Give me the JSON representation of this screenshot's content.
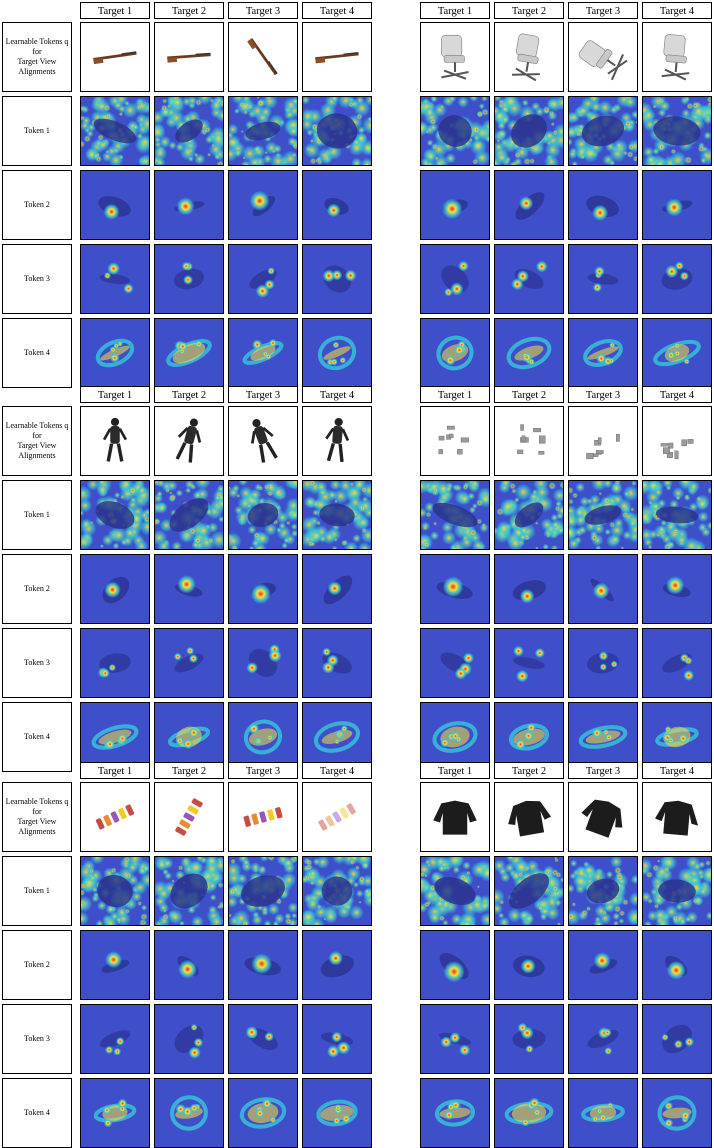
{
  "figure": {
    "panels": [
      {
        "name": "rifle",
        "columns": [
          "Target 1",
          "Target 2",
          "Target 3",
          "Target 4"
        ]
      },
      {
        "name": "chair",
        "columns": [
          "Target 1",
          "Target 2",
          "Target 3",
          "Target 4"
        ]
      },
      {
        "name": "human",
        "columns": [
          "Target 1",
          "Target 2",
          "Target 3",
          "Target 4"
        ]
      },
      {
        "name": "scene",
        "columns": [
          "Target 1",
          "Target 2",
          "Target 3",
          "Target 4"
        ]
      },
      {
        "name": "text-sculpture",
        "columns": [
          "Target 1",
          "Target 2",
          "Target 3",
          "Target 4"
        ]
      },
      {
        "name": "jacket",
        "columns": [
          "Target 1",
          "Target 2",
          "Target 3",
          "Target 4"
        ]
      }
    ],
    "ref_label_lines": [
      "Learnable Tokens q",
      "for",
      "Target View",
      "Alignments"
    ],
    "token_rows": [
      "Token 1",
      "Token 2",
      "Token 3",
      "Token 4"
    ],
    "colors": {
      "heat_low": "#3f4fc9",
      "heat_mid": "#37c7d9",
      "heat_high": "#f5e13a",
      "heat_peak": "#e8322a",
      "frame": "#000000"
    }
  }
}
